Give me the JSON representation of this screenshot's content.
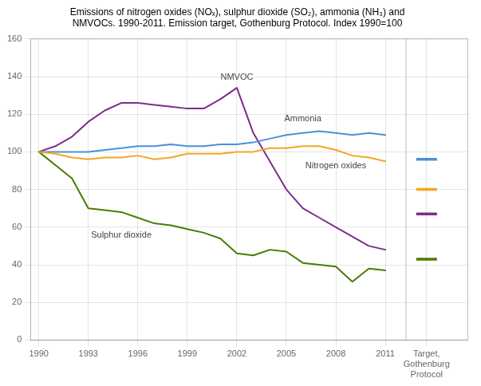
{
  "chart_data": {
    "type": "line",
    "title": "Emissions of nitrogen oxides (NOₓ), sulphur dioxide (SO₂), ammonia (NH₃) and\nNMVOCs. 1990-2011. Emission target, Gothenburg Protocol. Index 1990=100",
    "x": [
      1990,
      1991,
      1992,
      1993,
      1994,
      1995,
      1996,
      1997,
      1998,
      1999,
      2000,
      2001,
      2002,
      2003,
      2004,
      2005,
      2006,
      2007,
      2008,
      2009,
      2010,
      2011
    ],
    "series": [
      {
        "name": "Nitrogen oxides",
        "color": "#f5a623",
        "target": 80,
        "values": [
          100,
          99,
          97,
          96,
          97,
          97,
          98,
          96,
          97,
          99,
          99,
          99,
          100,
          100,
          102,
          102,
          103,
          103,
          101,
          98,
          97,
          95
        ]
      },
      {
        "name": "Sulphur dioxide",
        "color": "#4a7c00",
        "target": 43,
        "values": [
          100,
          93,
          86,
          70,
          69,
          68,
          65,
          62,
          61,
          59,
          57,
          54,
          46,
          45,
          48,
          47,
          41,
          40,
          39,
          31,
          38,
          37
        ]
      },
      {
        "name": "Ammonia",
        "color": "#4a90d9",
        "target": 96,
        "values": [
          100,
          100,
          100,
          100,
          101,
          102,
          103,
          103,
          104,
          103,
          103,
          104,
          104,
          105,
          107,
          109,
          110,
          111,
          110,
          109,
          110,
          109
        ]
      },
      {
        "name": "NMVOC",
        "color": "#7b2d8b",
        "target": 67,
        "values": [
          100,
          103,
          108,
          116,
          122,
          126,
          126,
          125,
          124,
          123,
          123,
          128,
          134,
          110,
          95,
          80,
          70,
          65,
          60,
          55,
          50,
          48
        ]
      }
    ],
    "target_x": 2013.5,
    "xlim": [
      1989.5,
      2016.0
    ],
    "xticks": [
      1990,
      1993,
      1996,
      1999,
      2002,
      2005,
      2008,
      2011,
      {
        "value": 2013.5,
        "label": "Target,\nGothenburg\nProtocol"
      }
    ],
    "ylim": [
      0,
      160
    ],
    "yticks": [
      0,
      20,
      40,
      60,
      80,
      100,
      120,
      140,
      160
    ],
    "grid": true
  }
}
